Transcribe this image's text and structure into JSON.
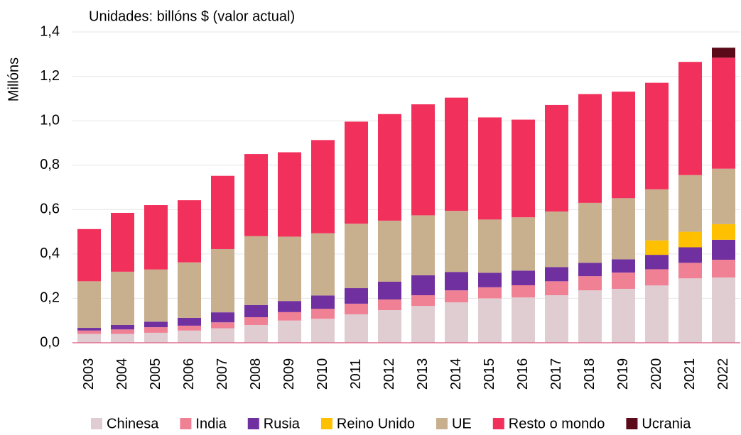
{
  "chart_data": {
    "type": "stacked_bar",
    "title": "Unidades: billóns $ (valor actual)",
    "y_label": "Millóns",
    "categories": [
      "2003",
      "2004",
      "2005",
      "2006",
      "2007",
      "2008",
      "2009",
      "2010",
      "2011",
      "2012",
      "2013",
      "2014",
      "2015",
      "2016",
      "2017",
      "2018",
      "2019",
      "2020",
      "2021",
      "2022"
    ],
    "series": [
      {
        "name": "Chinesa",
        "color": "#e0cdd2",
        "values": [
          0.04,
          0.04,
          0.045,
          0.055,
          0.065,
          0.08,
          0.1,
          0.108,
          0.128,
          0.147,
          0.166,
          0.182,
          0.2,
          0.204,
          0.214,
          0.236,
          0.243,
          0.258,
          0.29,
          0.294
        ]
      },
      {
        "name": "India",
        "color": "#f08094",
        "values": [
          0.015,
          0.02,
          0.025,
          0.022,
          0.027,
          0.035,
          0.038,
          0.045,
          0.048,
          0.048,
          0.048,
          0.054,
          0.05,
          0.055,
          0.063,
          0.064,
          0.073,
          0.073,
          0.07,
          0.08
        ]
      },
      {
        "name": "Rusia",
        "color": "#7030a0",
        "values": [
          0.012,
          0.02,
          0.025,
          0.035,
          0.045,
          0.055,
          0.05,
          0.06,
          0.07,
          0.08,
          0.09,
          0.083,
          0.065,
          0.066,
          0.064,
          0.06,
          0.06,
          0.065,
          0.07,
          0.09
        ]
      },
      {
        "name": "Reino Unido",
        "color": "#ffc000",
        "values": [
          0,
          0,
          0,
          0,
          0,
          0,
          0,
          0,
          0,
          0,
          0,
          0,
          0,
          0,
          0,
          0,
          0,
          0.065,
          0.07,
          0.07
        ]
      },
      {
        "name": "UE",
        "color": "#c8b08e",
        "values": [
          0.21,
          0.24,
          0.235,
          0.25,
          0.285,
          0.31,
          0.29,
          0.28,
          0.29,
          0.275,
          0.27,
          0.275,
          0.24,
          0.24,
          0.25,
          0.27,
          0.275,
          0.23,
          0.255,
          0.25
        ]
      },
      {
        "name": "Resto o mondo",
        "color": "#f2305c",
        "values": [
          0.235,
          0.265,
          0.29,
          0.28,
          0.33,
          0.37,
          0.38,
          0.42,
          0.46,
          0.48,
          0.5,
          0.51,
          0.46,
          0.44,
          0.48,
          0.49,
          0.48,
          0.48,
          0.51,
          0.5
        ]
      },
      {
        "name": "Ucrania",
        "color": "#5a0a18",
        "values": [
          0,
          0,
          0,
          0,
          0,
          0,
          0,
          0,
          0,
          0,
          0,
          0,
          0,
          0,
          0,
          0,
          0,
          0,
          0,
          0.045
        ]
      }
    ],
    "ylim": [
      0,
      1.4
    ],
    "yticks": [
      {
        "value": 0,
        "label": "0,0"
      },
      {
        "value": 0.2,
        "label": "0,2"
      },
      {
        "value": 0.4,
        "label": "0,4"
      },
      {
        "value": 0.6,
        "label": "0,6"
      },
      {
        "value": 0.8,
        "label": "0,8"
      },
      {
        "value": 1.0,
        "label": "1,0"
      },
      {
        "value": 1.2,
        "label": "1,2"
      },
      {
        "value": 1.4,
        "label": "1,4"
      }
    ],
    "grid": true,
    "legend": "bottom"
  }
}
